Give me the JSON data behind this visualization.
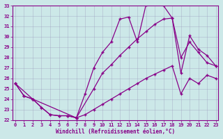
{
  "xlabel": "Windchill (Refroidissement éolien,°C)",
  "bg_color": "#cce8e8",
  "line_color": "#880088",
  "xlim_min": -0.3,
  "xlim_max": 23.3,
  "ylim_min": 22,
  "ylim_max": 33,
  "xticks": [
    0,
    1,
    2,
    3,
    4,
    5,
    6,
    7,
    8,
    9,
    10,
    11,
    12,
    13,
    14,
    15,
    16,
    17,
    18,
    19,
    20,
    21,
    22,
    23
  ],
  "yticks": [
    22,
    23,
    24,
    25,
    26,
    27,
    28,
    29,
    30,
    31,
    32,
    33
  ],
  "line1_x": [
    0,
    1,
    2,
    3,
    4,
    5,
    6,
    7,
    8,
    9,
    10,
    11,
    12,
    13,
    14,
    15,
    16,
    17,
    18,
    19,
    20,
    21,
    22,
    23
  ],
  "line1_y": [
    25.5,
    24.3,
    24.0,
    23.2,
    22.5,
    22.4,
    22.4,
    22.2,
    24.5,
    27.0,
    28.5,
    29.5,
    31.7,
    31.9,
    29.5,
    33.1,
    33.3,
    33.0,
    31.8,
    28.0,
    29.5,
    28.5,
    27.5,
    27.2
  ],
  "line2_x": [
    0,
    2,
    7,
    9,
    10,
    11,
    12,
    13,
    14,
    15,
    16,
    17,
    18,
    19,
    20,
    21,
    22,
    23
  ],
  "line2_y": [
    25.5,
    24.0,
    22.2,
    25.0,
    26.5,
    27.3,
    28.2,
    29.0,
    29.8,
    30.5,
    31.2,
    31.7,
    31.8,
    26.5,
    30.1,
    28.8,
    28.2,
    27.2
  ],
  "line3_x": [
    0,
    1,
    2,
    3,
    4,
    5,
    6,
    7,
    8,
    9,
    10,
    11,
    12,
    13,
    14,
    15,
    16,
    17,
    18,
    19,
    20,
    21,
    22,
    23
  ],
  "line3_y": [
    25.5,
    24.3,
    24.0,
    23.2,
    22.5,
    22.4,
    22.4,
    22.2,
    22.5,
    23.0,
    23.5,
    24.0,
    24.5,
    25.0,
    25.5,
    26.0,
    26.4,
    26.8,
    27.2,
    24.5,
    26.0,
    25.5,
    26.3,
    26.0
  ]
}
